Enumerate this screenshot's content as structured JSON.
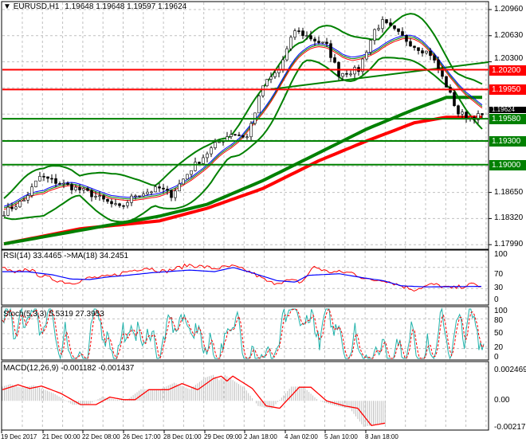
{
  "header": {
    "symbol": "EURUSD,H1",
    "ohlc": "1.19648 1.19648 1.19597 1.19624"
  },
  "chart_data": [
    {
      "type": "candlestick",
      "title": "EURUSD,H1",
      "ylim": [
        1.1799,
        1.2096
      ],
      "yticks": [
        "1.20960",
        "1.20630",
        "1.20300",
        "1.18650",
        "1.18320",
        "1.17990"
      ],
      "price_path": [
        [
          0,
          1.184
        ],
        [
          5,
          1.1855
        ],
        [
          9,
          1.1885
        ],
        [
          15,
          1.1875
        ],
        [
          21,
          1.1865
        ],
        [
          29,
          1.1845
        ],
        [
          33,
          1.1862
        ],
        [
          39,
          1.187
        ],
        [
          42,
          1.1862
        ],
        [
          47,
          1.1895
        ],
        [
          53,
          1.1925
        ],
        [
          57,
          1.194
        ],
        [
          61,
          1.1935
        ],
        [
          65,
          1.2
        ],
        [
          69,
          1.202
        ],
        [
          73,
          1.207
        ],
        [
          77,
          1.206
        ],
        [
          81,
          1.205
        ],
        [
          84,
          1.2015
        ],
        [
          89,
          1.202
        ],
        [
          93,
          1.207
        ],
        [
          95,
          1.208
        ],
        [
          99,
          1.2065
        ],
        [
          103,
          1.205
        ],
        [
          107,
          1.204
        ],
        [
          111,
          1.2
        ],
        [
          114,
          1.1965
        ],
        [
          117,
          1.196
        ],
        [
          120,
          1.1962
        ]
      ],
      "levels": [
        {
          "value": "1.20200",
          "color": "#ff0000"
        },
        {
          "value": "1.19950",
          "color": "#ff0000"
        },
        {
          "value": "1.19580",
          "color": "#008000"
        },
        {
          "value": "1.19300",
          "color": "#008000"
        },
        {
          "value": "1.19000",
          "color": "#008000"
        }
      ],
      "current_price": "1.19624",
      "xticks": [
        "19 Dec 2017",
        "21 Dec 00:00",
        "22 Dec 08:00",
        "26 Dec 17:00",
        "28 Dec 01:00",
        "29 Dec 09:00",
        "2 Jan 18:00",
        "4 Jan 02:00",
        "5 Jan 10:00",
        "8 Jan 18:00"
      ],
      "sma_green": [
        [
          0,
          1.18
        ],
        [
          19,
          1.1817
        ],
        [
          39,
          1.1835
        ],
        [
          51,
          1.185
        ],
        [
          65,
          1.188
        ],
        [
          79,
          1.1915
        ],
        [
          91,
          1.1945
        ],
        [
          103,
          1.197
        ],
        [
          111,
          1.1985
        ],
        [
          120,
          1.1985
        ]
      ],
      "sma_red": [
        [
          0,
          1.18
        ],
        [
          19,
          1.1819
        ],
        [
          39,
          1.1829
        ],
        [
          51,
          1.1845
        ],
        [
          65,
          1.187
        ],
        [
          79,
          1.1905
        ],
        [
          91,
          1.193
        ],
        [
          103,
          1.1953
        ],
        [
          111,
          1.196
        ],
        [
          120,
          1.196
        ]
      ]
    },
    {
      "type": "line",
      "title": "RSI(14) 33.4465  ->MA(18) 34.2451",
      "ylim": [
        0,
        100
      ],
      "yticks": [
        "100",
        "70",
        "30",
        "0"
      ],
      "rsi": [
        [
          0,
          70
        ],
        [
          10,
          58
        ],
        [
          20,
          68
        ],
        [
          30,
          55
        ],
        [
          45,
          45
        ],
        [
          55,
          40
        ],
        [
          70,
          50
        ],
        [
          85,
          52
        ],
        [
          100,
          62
        ],
        [
          115,
          70
        ],
        [
          130,
          62
        ],
        [
          150,
          75
        ],
        [
          170,
          68
        ],
        [
          185,
          72
        ],
        [
          200,
          60
        ],
        [
          215,
          40
        ],
        [
          230,
          45
        ],
        [
          240,
          42
        ],
        [
          250,
          72
        ],
        [
          260,
          62
        ],
        [
          280,
          60
        ],
        [
          295,
          45
        ],
        [
          305,
          47
        ],
        [
          320,
          35
        ],
        [
          330,
          28
        ],
        [
          345,
          38
        ],
        [
          360,
          30
        ],
        [
          378,
          38
        ],
        [
          385,
          33
        ]
      ],
      "ma": [
        [
          0,
          62
        ],
        [
          20,
          62
        ],
        [
          40,
          56
        ],
        [
          55,
          48
        ],
        [
          70,
          47
        ],
        [
          85,
          52
        ],
        [
          100,
          55
        ],
        [
          120,
          60
        ],
        [
          150,
          65
        ],
        [
          170,
          62
        ],
        [
          185,
          70
        ],
        [
          200,
          60
        ],
        [
          220,
          45
        ],
        [
          235,
          42
        ],
        [
          245,
          55
        ],
        [
          270,
          58
        ],
        [
          290,
          50
        ],
        [
          305,
          45
        ],
        [
          320,
          35
        ],
        [
          340,
          33
        ],
        [
          385,
          34
        ]
      ]
    },
    {
      "type": "line",
      "title": "Stoch(5,3,3) 5.5319 27.3953",
      "ylim": [
        0,
        100
      ],
      "yticks": [
        "100",
        "80",
        "50",
        "20",
        "0"
      ]
    },
    {
      "type": "bar",
      "title": "MACD(12,26,9) -0.001182 -0.001437",
      "ylim": [
        -0.002172,
        0.002469
      ],
      "yticks": [
        "0.002469",
        "0.00",
        "-0.002172"
      ],
      "signal": [
        [
          0,
          0.0009
        ],
        [
          8,
          0.0013
        ],
        [
          14,
          0.001
        ],
        [
          20,
          0.0012
        ],
        [
          30,
          0.0006
        ],
        [
          40,
          -0.0003
        ],
        [
          48,
          -0.0003
        ],
        [
          55,
          0.0003
        ],
        [
          62,
          0.0001
        ],
        [
          68,
          0.0001
        ],
        [
          75,
          0.0009
        ],
        [
          85,
          0.0009
        ],
        [
          92,
          0.0014
        ],
        [
          100,
          0.0009
        ],
        [
          108,
          0.0018
        ],
        [
          112,
          0.002
        ],
        [
          115,
          0.0016
        ],
        [
          118,
          0.002
        ],
        [
          128,
          0.001
        ],
        [
          135,
          -0.0004
        ],
        [
          142,
          -0.0006
        ],
        [
          152,
          0.0011
        ],
        [
          158,
          0.0011
        ],
        [
          166,
          0.0
        ],
        [
          175,
          -0.0004
        ],
        [
          182,
          -0.0006
        ],
        [
          189,
          -0.002
        ],
        [
          196,
          -0.0018
        ]
      ]
    }
  ]
}
